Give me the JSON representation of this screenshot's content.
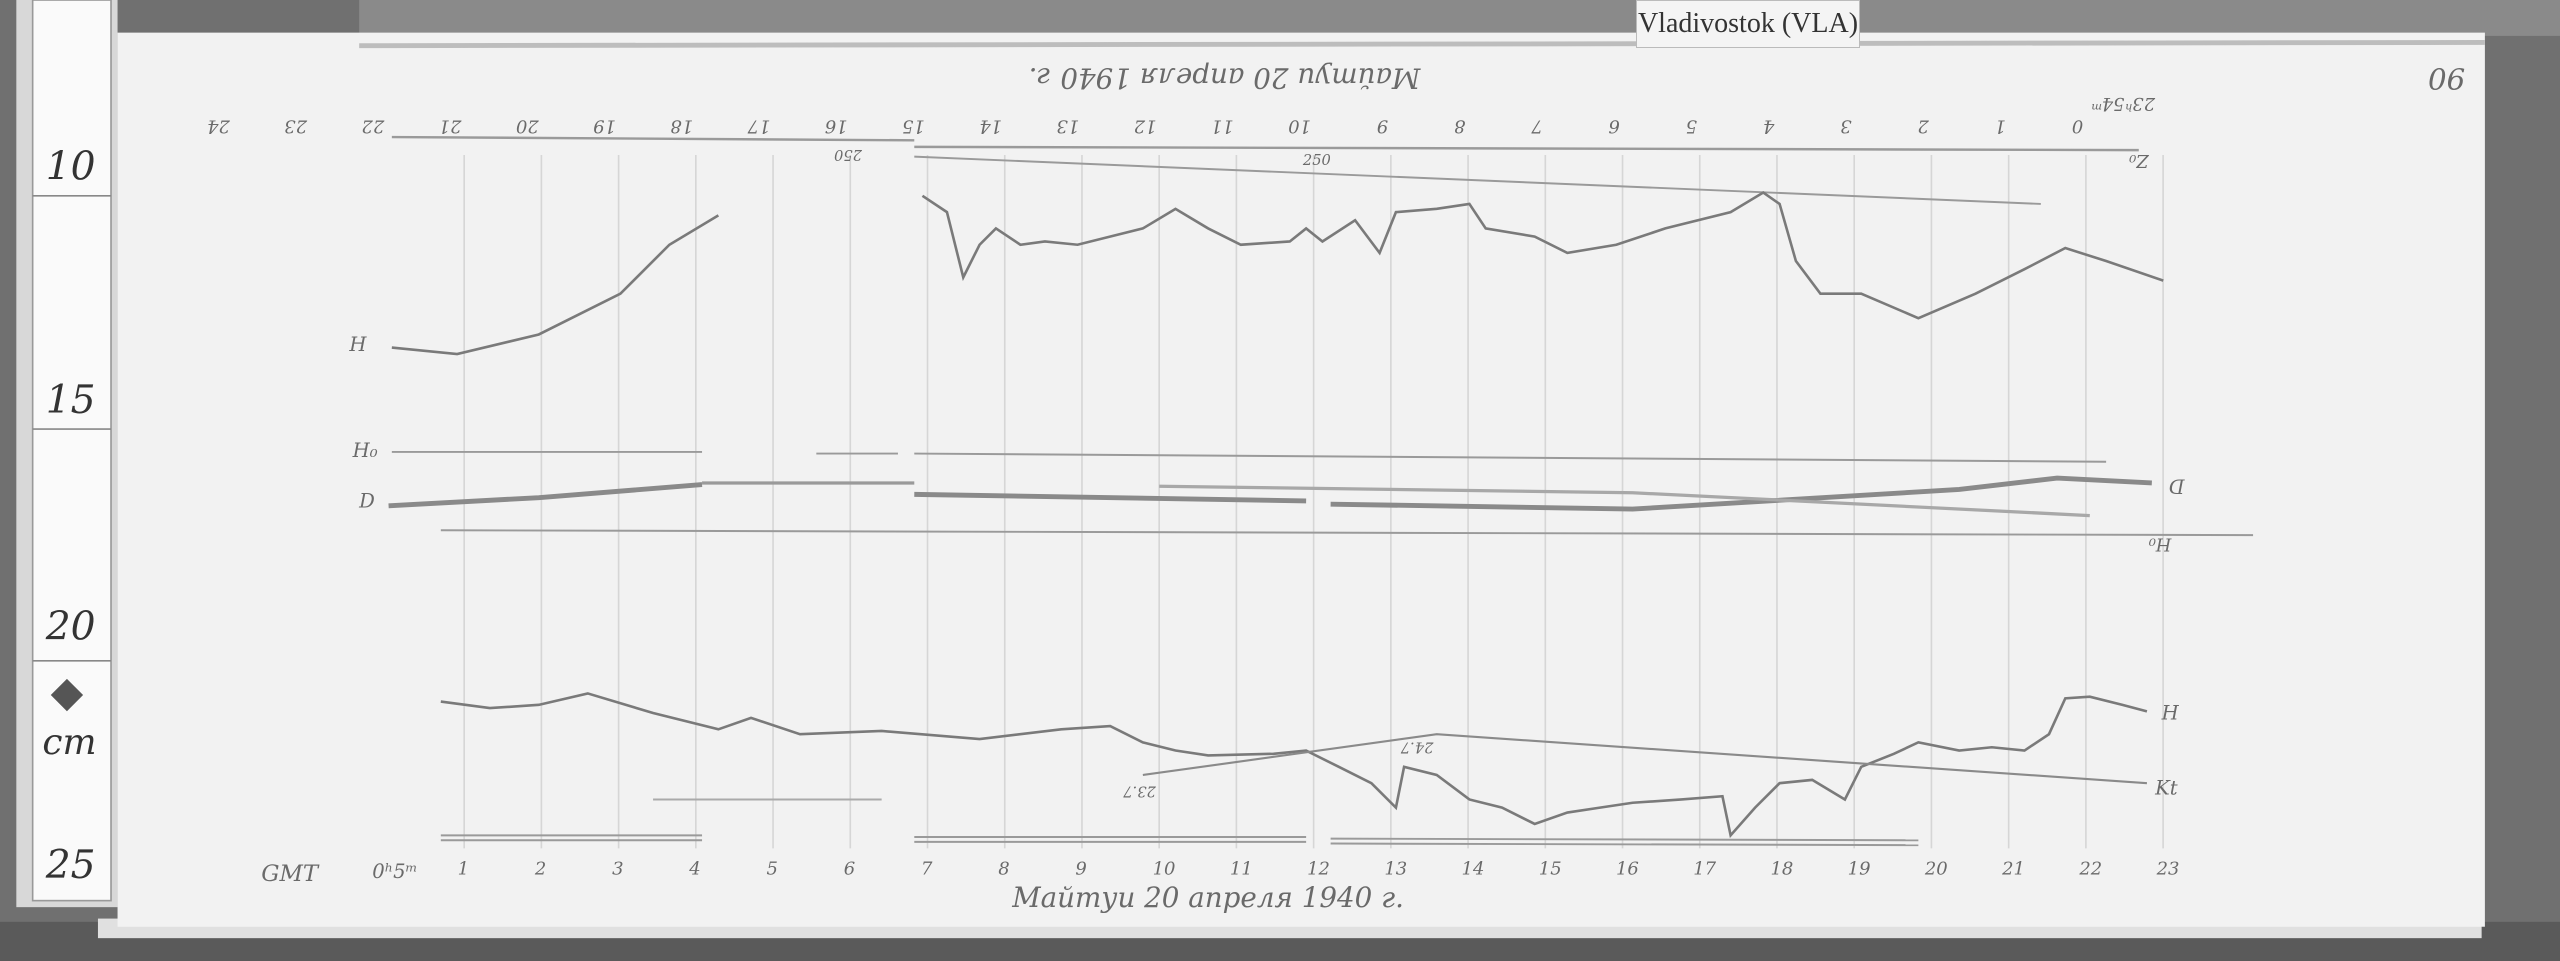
{
  "station_label": "Vladivostok (VLA)",
  "sheet_number": "90",
  "caption_top": "Майтуи 20 апреля 1940 г.",
  "caption_bottom": "Майтуи 20 апреля 1940 г.",
  "time_system": "GMT",
  "start_time": "0ʰ5ᵐ",
  "top_start_time": "23ʰ54ᵐ",
  "ruler": {
    "marks": [
      "10",
      "15",
      "20",
      "25"
    ],
    "unit": "cm"
  },
  "hour_labels_bottom": [
    "1",
    "2",
    "3",
    "4",
    "5",
    "6",
    "7",
    "8",
    "9",
    "10",
    "11",
    "12",
    "13",
    "14",
    "15",
    "16",
    "17",
    "18",
    "19",
    "20",
    "21",
    "22",
    "23"
  ],
  "hour_labels_top": [
    "0",
    "1",
    "2",
    "3",
    "4",
    "5",
    "6",
    "7",
    "8",
    "9",
    "10",
    "11",
    "12",
    "13",
    "14",
    "15",
    "16",
    "17",
    "18",
    "19",
    "20",
    "21",
    "22",
    "23",
    "24"
  ],
  "trace_labels": {
    "h_top": "H",
    "h0": "H₀",
    "d": "D",
    "d_right": "D",
    "h_bottom": "H",
    "kt": "Kt",
    "h0_right": "H₀",
    "z0": "Z₀"
  },
  "annotations": {
    "a1": "250",
    "a2": "250",
    "b1": "23.7",
    "b2": "24.7"
  },
  "colors": {
    "paper": "#f2f2f2",
    "trace": "#7a7a7a",
    "background": "#6e6e6e"
  }
}
